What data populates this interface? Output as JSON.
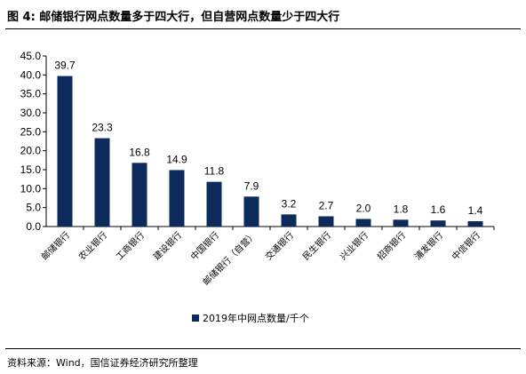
{
  "title": "图 4: 邮储银行网点数量多于四大行，但自营网点数量少于四大行",
  "source": "资料来源：Wind，国信证券经济研究所整理",
  "chart_data": {
    "type": "bar",
    "categories": [
      "邮储银行",
      "农业银行",
      "工商银行",
      "建设银行",
      "中国银行",
      "邮储银行（自营）",
      "交通银行",
      "民生银行",
      "兴业银行",
      "招商银行",
      "浦发银行",
      "中信银行"
    ],
    "series": [
      {
        "name": "2019年中网点数量/千个",
        "values": [
          39.7,
          23.3,
          16.8,
          14.9,
          11.8,
          7.9,
          3.2,
          2.7,
          2.0,
          1.8,
          1.6,
          1.4
        ]
      }
    ],
    "value_labels": [
      "39.7",
      "23.3",
      "16.8",
      "14.9",
      "11.8",
      "7.9",
      "3.2",
      "2.7",
      "2.0",
      "1.8",
      "1.6",
      "1.4"
    ],
    "yticks": [
      "0.0",
      "5.0",
      "10.0",
      "15.0",
      "20.0",
      "25.0",
      "30.0",
      "35.0",
      "40.0",
      "45.0"
    ],
    "ylim": [
      0,
      45
    ],
    "bar_color": "#0d2a5c",
    "legend_position": "bottom",
    "grid": false
  }
}
